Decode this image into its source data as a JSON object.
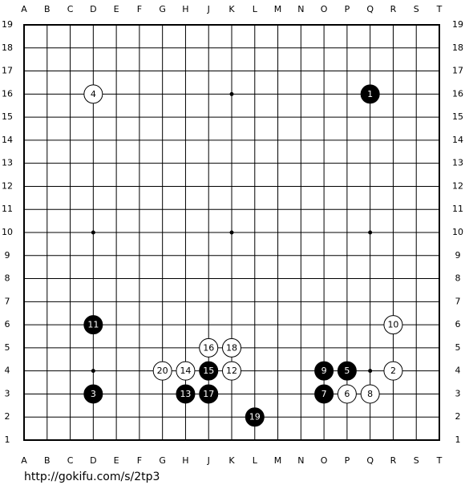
{
  "board": {
    "columns": [
      "A",
      "B",
      "C",
      "D",
      "E",
      "F",
      "G",
      "H",
      "J",
      "K",
      "L",
      "M",
      "N",
      "O",
      "P",
      "Q",
      "R",
      "S",
      "T"
    ],
    "rows": [
      19,
      18,
      17,
      16,
      15,
      14,
      13,
      12,
      11,
      10,
      9,
      8,
      7,
      6,
      5,
      4,
      3,
      2,
      1
    ],
    "stones": [
      {
        "label": "1",
        "color": "black",
        "col": "Q",
        "row": 16
      },
      {
        "label": "2",
        "color": "white",
        "col": "R",
        "row": 4
      },
      {
        "label": "3",
        "color": "black",
        "col": "D",
        "row": 3
      },
      {
        "label": "4",
        "color": "white",
        "col": "D",
        "row": 16
      },
      {
        "label": "5",
        "color": "black",
        "col": "P",
        "row": 4
      },
      {
        "label": "6",
        "color": "white",
        "col": "P",
        "row": 3
      },
      {
        "label": "7",
        "color": "black",
        "col": "O",
        "row": 3
      },
      {
        "label": "8",
        "color": "white",
        "col": "Q",
        "row": 3
      },
      {
        "label": "9",
        "color": "black",
        "col": "O",
        "row": 4
      },
      {
        "label": "10",
        "color": "white",
        "col": "R",
        "row": 6
      },
      {
        "label": "11",
        "color": "black",
        "col": "D",
        "row": 6
      },
      {
        "label": "12",
        "color": "white",
        "col": "K",
        "row": 4
      },
      {
        "label": "13",
        "color": "black",
        "col": "H",
        "row": 3
      },
      {
        "label": "14",
        "color": "white",
        "col": "H",
        "row": 4
      },
      {
        "label": "15",
        "color": "black",
        "col": "J",
        "row": 4
      },
      {
        "label": "16",
        "color": "white",
        "col": "J",
        "row": 5
      },
      {
        "label": "17",
        "color": "black",
        "col": "J",
        "row": 3
      },
      {
        "label": "18",
        "color": "white",
        "col": "K",
        "row": 5
      },
      {
        "label": "19",
        "color": "black",
        "col": "L",
        "row": 2
      },
      {
        "label": "20",
        "color": "white",
        "col": "G",
        "row": 4
      }
    ]
  },
  "footer": {
    "url": "http://gokifu.com/s/2tp3"
  }
}
